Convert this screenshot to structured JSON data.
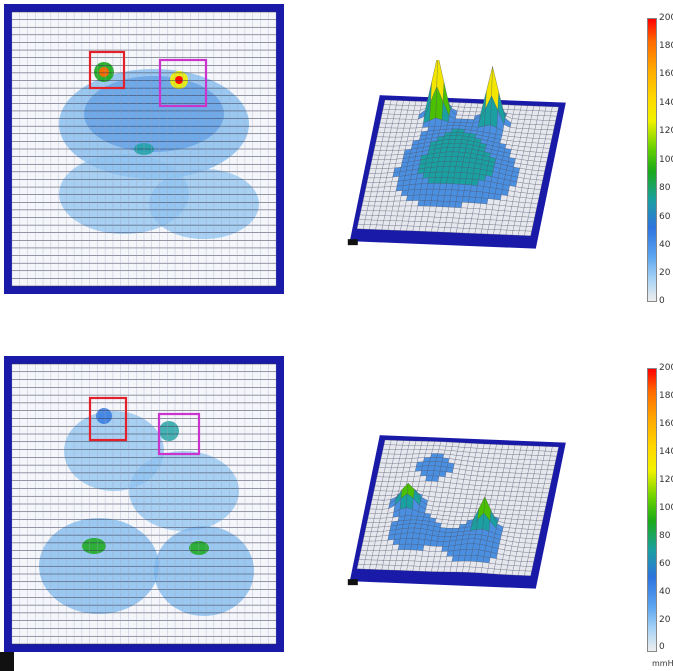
{
  "panels": [
    {
      "id": "top",
      "colorbar": {
        "ticks": [
          "200",
          "180",
          "160",
          "140",
          "120",
          "100",
          "80",
          "60",
          "40",
          "20",
          "0"
        ]
      }
    },
    {
      "id": "bottom",
      "colorbar": {
        "ticks": [
          "200",
          "180",
          "160",
          "140",
          "120",
          "100",
          "80",
          "60",
          "40",
          "20",
          "0"
        ]
      },
      "unit": "mmHg"
    }
  ],
  "colors": {
    "frame": "#1a1aa8",
    "grid": "#ffffff",
    "roi_red": "#e4202a",
    "roi_magenta": "#cc33cc",
    "scale": [
      "#ff0000",
      "#ff6a00",
      "#ffaa00",
      "#ffd800",
      "#f2f200",
      "#66d000",
      "#1aaa1a",
      "#1aa0a0",
      "#2e74e0",
      "#5aa4f0",
      "#a6d2f6",
      "#e8e8e8"
    ]
  },
  "icons": [
    "pressure-map-2d",
    "pressure-surface-3d",
    "colorbar-legend"
  ]
}
